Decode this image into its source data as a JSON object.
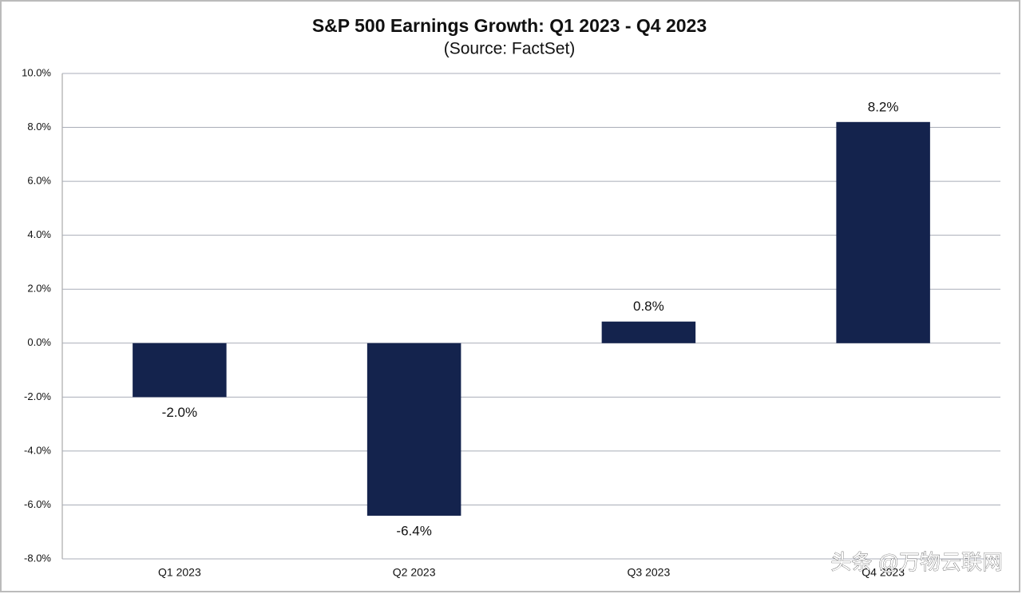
{
  "chart_data": {
    "type": "bar",
    "title": "S&P 500 Earnings Growth: Q1 2023 - Q4 2023",
    "subtitle": "(Source: FactSet)",
    "categories": [
      "Q1 2023",
      "Q2 2023",
      "Q3 2023",
      "Q4 2023"
    ],
    "values": [
      -2.0,
      -6.4,
      0.8,
      8.2
    ],
    "value_labels": [
      "-2.0%",
      "-6.4%",
      "0.8%",
      "8.2%"
    ],
    "color": "#14234d",
    "ylim": [
      -8,
      10
    ],
    "yticks": [
      {
        "value": -8,
        "label": "-8.0%"
      },
      {
        "value": -6,
        "label": "-6.0%"
      },
      {
        "value": -4,
        "label": "-4.0%"
      },
      {
        "value": -2,
        "label": "-2.0%"
      },
      {
        "value": 0,
        "label": "0.0%"
      },
      {
        "value": 2,
        "label": "2.0%"
      },
      {
        "value": 4,
        "label": "4.0%"
      },
      {
        "value": 6,
        "label": "6.0%"
      },
      {
        "value": 8,
        "label": "8.0%"
      },
      {
        "value": 10,
        "label": "10.0%"
      }
    ],
    "grid": true,
    "watermark": "头条 @万物云联网"
  }
}
